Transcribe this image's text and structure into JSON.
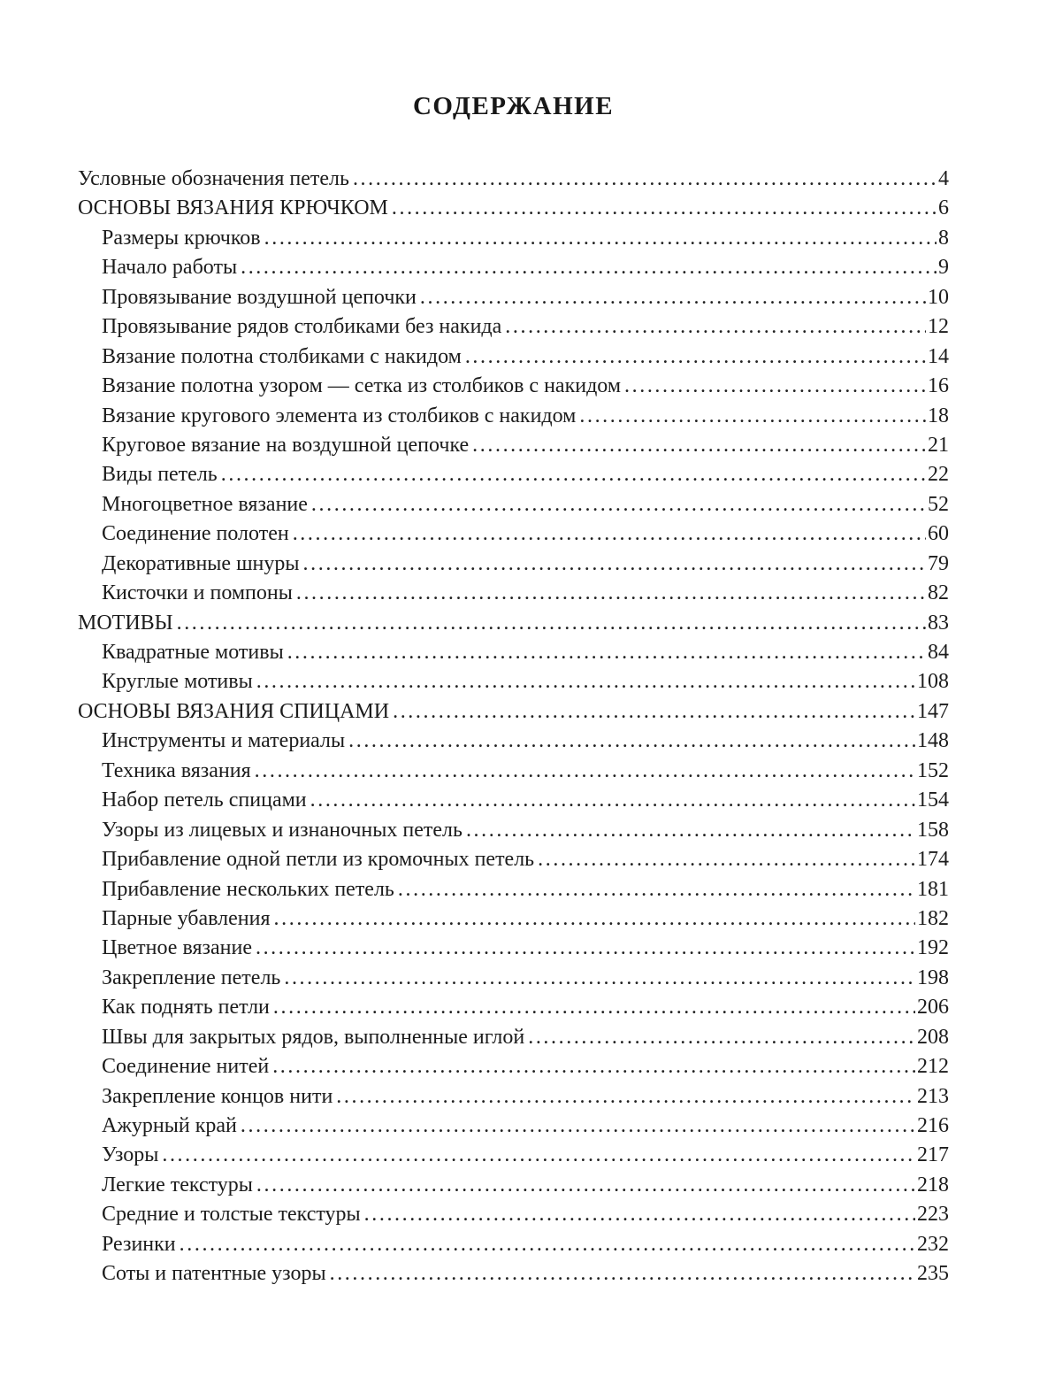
{
  "title": "СОДЕРЖАНИЕ",
  "colors": {
    "text": "#1c1c1c",
    "background": "#ffffff"
  },
  "entries": [
    {
      "label": "Условные обозначения петель",
      "page": "4",
      "level": 0
    },
    {
      "label": "ОСНОВЫ ВЯЗАНИЯ КРЮЧКОМ",
      "page": "6",
      "level": 0
    },
    {
      "label": "Размеры крючков",
      "page": "8",
      "level": 1
    },
    {
      "label": "Начало работы",
      "page": "9",
      "level": 1
    },
    {
      "label": "Провязывание воздушной цепочки",
      "page": "10",
      "level": 1
    },
    {
      "label": "Провязывание рядов столбиками без накида",
      "page": "12",
      "level": 1
    },
    {
      "label": "Вязание полотна столбиками с накидом",
      "page": "14",
      "level": 1
    },
    {
      "label": "Вязание полотна узором — сетка из столбиков с накидом",
      "page": "16",
      "level": 1
    },
    {
      "label": "Вязание кругового элемента из столбиков с накидом",
      "page": "18",
      "level": 1
    },
    {
      "label": "Круговое вязание на воздушной цепочке",
      "page": "21",
      "level": 1
    },
    {
      "label": "Виды петель",
      "page": "22",
      "level": 1
    },
    {
      "label": "Многоцветное вязание",
      "page": "52",
      "level": 1
    },
    {
      "label": "Соединение полотен",
      "page": "60",
      "level": 1
    },
    {
      "label": "Декоративные шнуры",
      "page": "79",
      "level": 1
    },
    {
      "label": "Кисточки и помпоны",
      "page": "82",
      "level": 1
    },
    {
      "label": "МОТИВЫ",
      "page": "83",
      "level": 0
    },
    {
      "label": "Квадратные мотивы",
      "page": "84",
      "level": 1
    },
    {
      "label": "Круглые мотивы",
      "page": "108",
      "level": 1
    },
    {
      "label": "ОСНОВЫ ВЯЗАНИЯ СПИЦАМИ",
      "page": "147",
      "level": 0
    },
    {
      "label": "Инструменты и материалы",
      "page": "148",
      "level": 1
    },
    {
      "label": "Техника вязания",
      "page": "152",
      "level": 1
    },
    {
      "label": "Набор петель спицами",
      "page": "154",
      "level": 1
    },
    {
      "label": "Узоры из лицевых и изнаночных петель",
      "page": "158",
      "level": 1
    },
    {
      "label": "Прибавление одной петли из кромочных петель",
      "page": "174",
      "level": 1
    },
    {
      "label": "Прибавление нескольких петель",
      "page": "181",
      "level": 1
    },
    {
      "label": "Парные убавления",
      "page": "182",
      "level": 1
    },
    {
      "label": "Цветное вязание",
      "page": "192",
      "level": 1
    },
    {
      "label": "Закрепление петель",
      "page": "198",
      "level": 1
    },
    {
      "label": "Как поднять петли",
      "page": "206",
      "level": 1
    },
    {
      "label": "Швы для закрытых рядов, выполненные иглой",
      "page": "208",
      "level": 1
    },
    {
      "label": "Соединение нитей",
      "page": "212",
      "level": 1
    },
    {
      "label": "Закрепление концов нити",
      "page": "213",
      "level": 1
    },
    {
      "label": "Ажурный край",
      "page": "216",
      "level": 1
    },
    {
      "label": "Узоры",
      "page": "217",
      "level": 1
    },
    {
      "label": "Легкие текстуры",
      "page": "218",
      "level": 1
    },
    {
      "label": "Средние и толстые текстуры",
      "page": "223",
      "level": 1
    },
    {
      "label": "Резинки",
      "page": "232",
      "level": 1
    },
    {
      "label": "Соты и патентные узоры",
      "page": "235",
      "level": 1
    }
  ]
}
